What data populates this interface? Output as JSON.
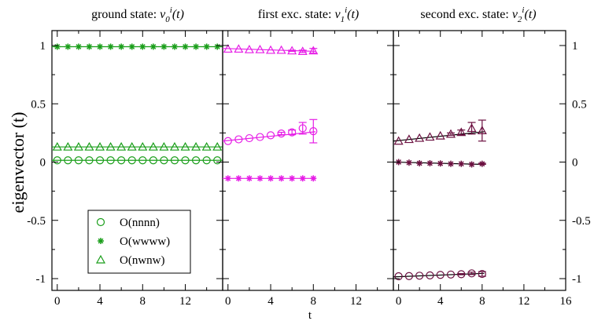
{
  "chart_data": {
    "type": "scatter",
    "ylabel": "eigenvector  (t)",
    "xlabel": "t",
    "ylim": [
      -1.1,
      1.1
    ],
    "yticks": [
      1,
      0.5,
      0,
      -0.5,
      -1
    ],
    "yticklabels": [
      "1",
      "0.5",
      "0",
      "-0.5",
      "-1"
    ],
    "legend": {
      "position": "lower-left of first panel",
      "entries": [
        {
          "label": "O(nnnn)",
          "marker": "circle"
        },
        {
          "label": "O(wwww)",
          "marker": "star"
        },
        {
          "label": "O(nwnw)",
          "marker": "triangle"
        }
      ]
    },
    "panels": [
      {
        "title_prefix": "ground state:",
        "title_symbol": "v",
        "title_sub": "0",
        "title_sup": "i",
        "title_suffix": "(t)",
        "xlim": [
          -0.5,
          15.5
        ],
        "xticks": [
          0,
          4,
          8,
          12
        ],
        "xticklabels": [
          "0",
          "4",
          "8",
          "12"
        ],
        "color": "#1a9e1a",
        "fit_ranges": [
          [
            0,
            15.5
          ]
        ],
        "series": [
          {
            "name": "O(nnnn)",
            "marker": "circle",
            "x": [
              0,
              1,
              2,
              3,
              4,
              5,
              6,
              7,
              8,
              9,
              10,
              11,
              12,
              13,
              14,
              15
            ],
            "y": [
              0.015,
              0.015,
              0.015,
              0.015,
              0.015,
              0.015,
              0.015,
              0.015,
              0.015,
              0.015,
              0.015,
              0.015,
              0.015,
              0.015,
              0.015,
              0.015
            ],
            "err": [
              0,
              0,
              0,
              0,
              0,
              0,
              0,
              0,
              0,
              0,
              0,
              0,
              0,
              0,
              0,
              0
            ],
            "fit": [
              0.015,
              0.015
            ]
          },
          {
            "name": "O(wwww)",
            "marker": "star",
            "x": [
              0,
              1,
              2,
              3,
              4,
              5,
              6,
              7,
              8,
              9,
              10,
              11,
              12,
              13,
              14,
              15
            ],
            "y": [
              0.99,
              0.99,
              0.99,
              0.99,
              0.99,
              0.99,
              0.99,
              0.99,
              0.99,
              0.99,
              0.99,
              0.99,
              0.99,
              0.99,
              0.99,
              0.99
            ],
            "err": [
              0,
              0,
              0,
              0,
              0,
              0,
              0,
              0,
              0,
              0,
              0,
              0,
              0,
              0,
              0,
              0
            ],
            "fit": [
              0.99,
              0.99
            ]
          },
          {
            "name": "O(nwnw)",
            "marker": "triangle",
            "x": [
              0,
              1,
              2,
              3,
              4,
              5,
              6,
              7,
              8,
              9,
              10,
              11,
              12,
              13,
              14,
              15
            ],
            "y": [
              0.13,
              0.13,
              0.13,
              0.13,
              0.13,
              0.13,
              0.13,
              0.13,
              0.13,
              0.13,
              0.13,
              0.13,
              0.13,
              0.13,
              0.13,
              0.13
            ],
            "err": [
              0,
              0,
              0,
              0,
              0,
              0,
              0,
              0,
              0,
              0,
              0,
              0,
              0,
              0,
              0,
              0
            ],
            "fit": [
              0.13,
              0.13
            ]
          }
        ]
      },
      {
        "title_prefix": "first exc. state:",
        "title_symbol": "v",
        "title_sub": "1",
        "title_sup": "i",
        "title_suffix": "(t)",
        "xlim": [
          -0.5,
          15.5
        ],
        "xticks": [
          0,
          4,
          8,
          12
        ],
        "xticklabels": [
          "0",
          "4",
          "8",
          "12"
        ],
        "color": "#e61ee6",
        "series": [
          {
            "name": "O(nnnn)",
            "marker": "circle",
            "x": [
              0,
              1,
              2,
              3,
              4,
              5,
              6,
              7,
              8
            ],
            "y": [
              0.18,
              0.195,
              0.205,
              0.215,
              0.23,
              0.245,
              0.255,
              0.29,
              0.265
            ],
            "err": [
              0,
              0,
              0,
              0,
              0,
              0.01,
              0.02,
              0.05,
              0.1
            ],
            "fit": [
              0.18,
              0.26
            ]
          },
          {
            "name": "O(wwww)",
            "marker": "star",
            "x": [
              0,
              1,
              2,
              3,
              4,
              5,
              6,
              7,
              8
            ],
            "y": [
              -0.14,
              -0.14,
              -0.14,
              -0.14,
              -0.14,
              -0.14,
              -0.14,
              -0.14,
              -0.14
            ],
            "err": [
              0,
              0,
              0,
              0,
              0,
              0,
              0,
              0,
              0
            ],
            "fit": [
              -0.14,
              -0.14
            ]
          },
          {
            "name": "O(nwnw)",
            "marker": "triangle",
            "x": [
              0,
              1,
              2,
              3,
              4,
              5,
              6,
              7,
              8
            ],
            "y": [
              0.97,
              0.97,
              0.965,
              0.965,
              0.96,
              0.96,
              0.955,
              0.95,
              0.955
            ],
            "err": [
              0,
              0,
              0,
              0,
              0,
              0,
              0.005,
              0.01,
              0.02
            ],
            "fit": [
              0.975,
              0.95
            ]
          }
        ]
      },
      {
        "title_prefix": "second exc. state:",
        "title_symbol": "v",
        "title_sub": "2",
        "title_sup": "i",
        "title_suffix": "(t)",
        "xlim": [
          -0.5,
          16
        ],
        "xticks": [
          0,
          4,
          8,
          12,
          16
        ],
        "xticklabels": [
          "0",
          "4",
          "8",
          "12",
          "16"
        ],
        "color": "#6b1040",
        "series": [
          {
            "name": "O(nnnn)",
            "marker": "circle",
            "x": [
              0,
              1,
              2,
              3,
              4,
              5,
              6,
              7,
              8
            ],
            "y": [
              -0.98,
              -0.978,
              -0.975,
              -0.972,
              -0.968,
              -0.965,
              -0.962,
              -0.955,
              -0.96
            ],
            "err": [
              0,
              0,
              0,
              0,
              0,
              0,
              0.005,
              0.01,
              0.02
            ],
            "fit": [
              -0.985,
              -0.955
            ]
          },
          {
            "name": "O(wwww)",
            "marker": "star",
            "x": [
              0,
              1,
              2,
              3,
              4,
              5,
              6,
              7,
              8
            ],
            "y": [
              0.0,
              -0.005,
              -0.01,
              -0.01,
              -0.012,
              -0.015,
              -0.015,
              -0.02,
              -0.015
            ],
            "err": [
              0,
              0,
              0,
              0,
              0,
              0,
              0,
              0,
              0.005
            ],
            "fit": [
              0.0,
              -0.02
            ]
          },
          {
            "name": "O(nwnw)",
            "marker": "triangle",
            "x": [
              0,
              1,
              2,
              3,
              4,
              5,
              6,
              7,
              8
            ],
            "y": [
              0.18,
              0.195,
              0.205,
              0.215,
              0.225,
              0.24,
              0.255,
              0.29,
              0.27
            ],
            "err": [
              0,
              0,
              0,
              0,
              0,
              0.01,
              0.02,
              0.05,
              0.09
            ],
            "fit": [
              0.18,
              0.26
            ]
          }
        ]
      }
    ]
  }
}
